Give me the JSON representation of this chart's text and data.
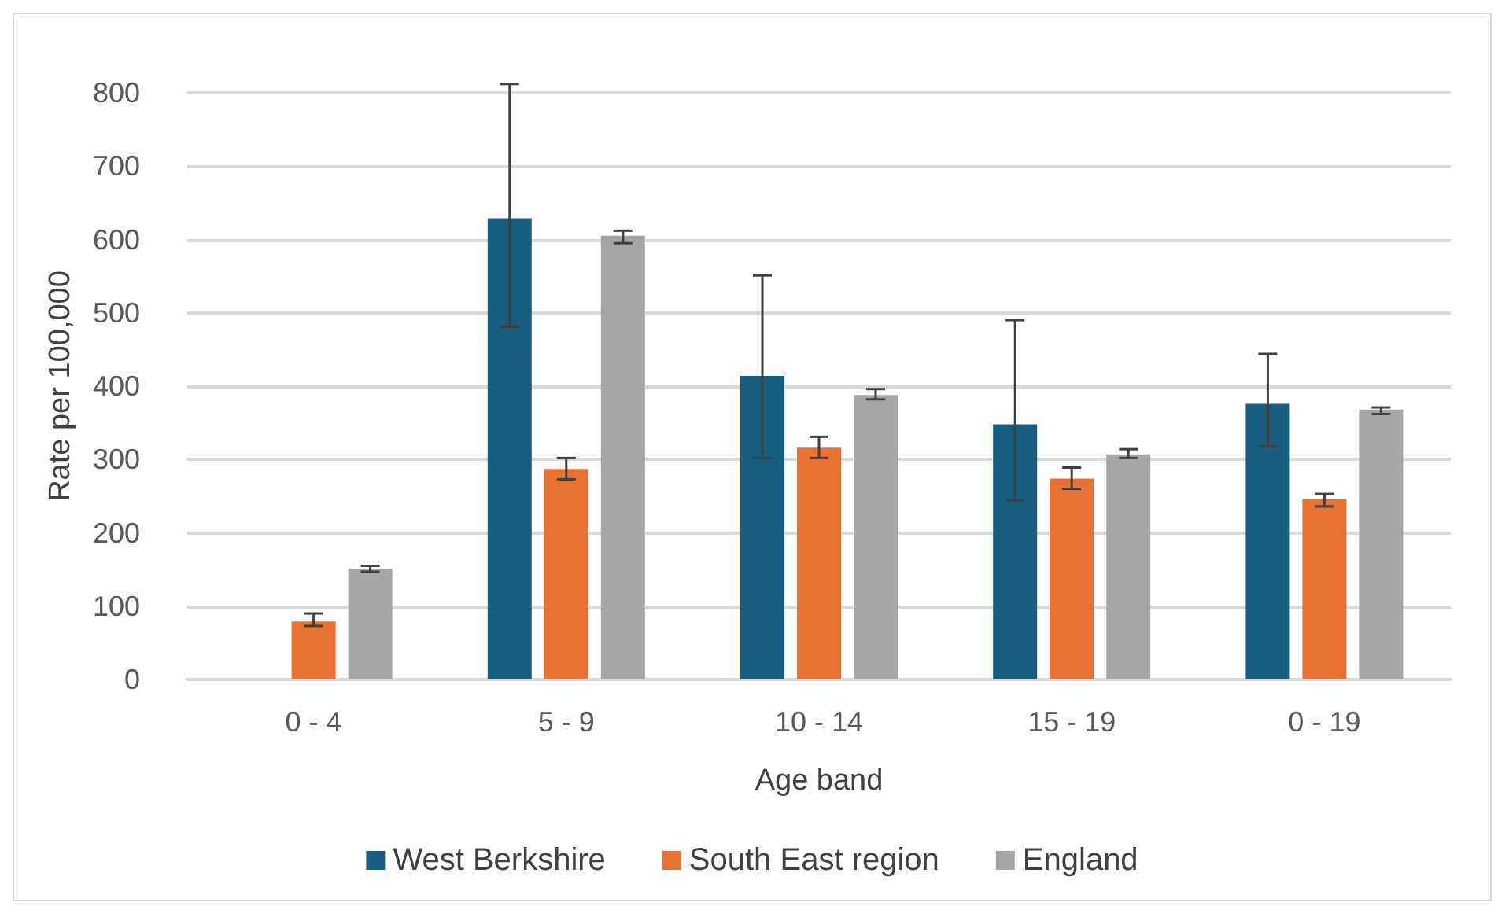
{
  "chart_data": {
    "type": "bar",
    "xlabel": "Age band",
    "ylabel": "Rate per 100,000",
    "categories": [
      "0 - 4",
      "5 - 9",
      "10 - 14",
      "15 - 19",
      "0 - 19"
    ],
    "series": [
      {
        "name": "West Berkshire",
        "color": "#175e80",
        "values": [
          null,
          629,
          414,
          348,
          376
        ],
        "errors": [
          null,
          [
            481,
            812
          ],
          [
            302,
            551
          ],
          [
            244,
            490
          ],
          [
            318,
            444
          ]
        ]
      },
      {
        "name": "South East region",
        "color": "#e97132",
        "values": [
          79,
          287,
          316,
          274,
          246
        ],
        "errors": [
          [
            73,
            90
          ],
          [
            273,
            302
          ],
          [
            302,
            331
          ],
          [
            260,
            289
          ],
          [
            236,
            253
          ]
        ]
      },
      {
        "name": "England",
        "color": "#a6a6a6",
        "values": [
          151,
          605,
          388,
          307,
          368
        ],
        "errors": [
          [
            147,
            155
          ],
          [
            595,
            612
          ],
          [
            382,
            396
          ],
          [
            302,
            314
          ],
          [
            362,
            371
          ]
        ]
      }
    ],
    "ylim": [
      0,
      800
    ],
    "yticks": [
      0,
      100,
      200,
      300,
      400,
      500,
      600,
      700,
      800
    ],
    "grid": "y",
    "legend": "bottom"
  }
}
